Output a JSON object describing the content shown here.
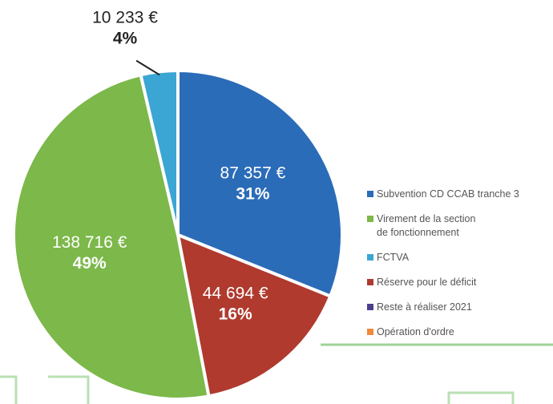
{
  "chart_data": {
    "type": "pie",
    "slices": [
      {
        "color": "#2b6cb8",
        "value": 87357,
        "value_label": "87 357 €",
        "percent": 31,
        "percent_label": "31%"
      },
      {
        "color": "#b03a2e",
        "value": 44694,
        "value_label": "44 694 €",
        "percent": 16,
        "percent_label": "16%"
      },
      {
        "color": "#7cb84a",
        "value": 138716,
        "value_label": "138 716 €",
        "percent": 49,
        "percent_label": "49%"
      },
      {
        "color": "#3ba6d3",
        "value": 10233,
        "value_label": "10 233 €",
        "percent": 4,
        "percent_label": "4%"
      }
    ],
    "legend": [
      {
        "name": "Subvention CD CCAB tranche 3",
        "color": "#2b6cb8"
      },
      {
        "name": "Virement de la section\nde fonctionnement",
        "color": "#7cb84a"
      },
      {
        "name": "FCTVA",
        "color": "#3ba6d3"
      },
      {
        "name": "Réserve pour le déficit",
        "color": "#b03a2e"
      },
      {
        "name": "Reste à réaliser 2021",
        "color": "#4a3f8f"
      },
      {
        "name": "Opération d'ordre",
        "color": "#f08a3c"
      }
    ]
  }
}
